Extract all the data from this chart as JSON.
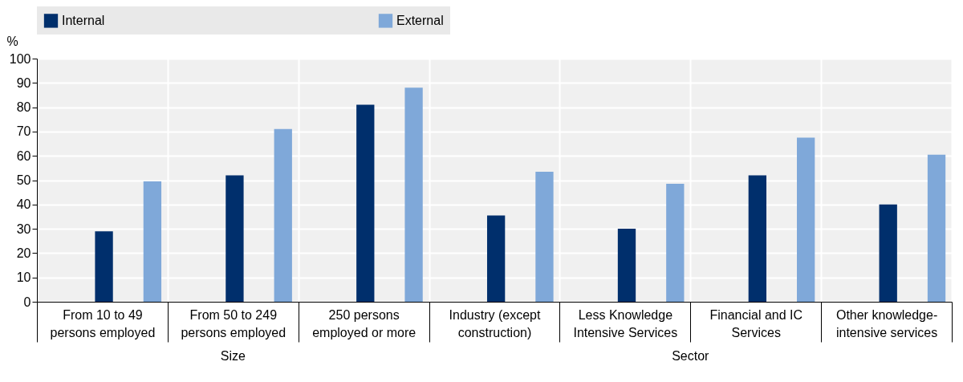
{
  "chart_data": {
    "type": "bar",
    "ylabel": "%",
    "categories": [
      "From 10 to 49 persons employed",
      "From 50 to 249 persons employed",
      "250 persons employed or more",
      "Industry (except construction)",
      "Less Knowledge Intensive Services",
      "Financial and IC Services",
      "Other knowledge-intensive services"
    ],
    "series": [
      {
        "name": "Internal",
        "color": "#002f6c",
        "values": [
          29,
          52,
          81,
          35.5,
          30,
          52,
          40
        ]
      },
      {
        "name": "External",
        "color": "#7fa8d9",
        "values": [
          49.5,
          71,
          88,
          53.5,
          48.5,
          67.5,
          60.5
        ]
      }
    ],
    "ylim": [
      0,
      100
    ],
    "yticks": [
      0,
      10,
      20,
      30,
      40,
      50,
      60,
      70,
      80,
      90,
      100
    ],
    "grid": true,
    "legend": "top",
    "annotations": [
      "Size",
      "Sector"
    ]
  }
}
